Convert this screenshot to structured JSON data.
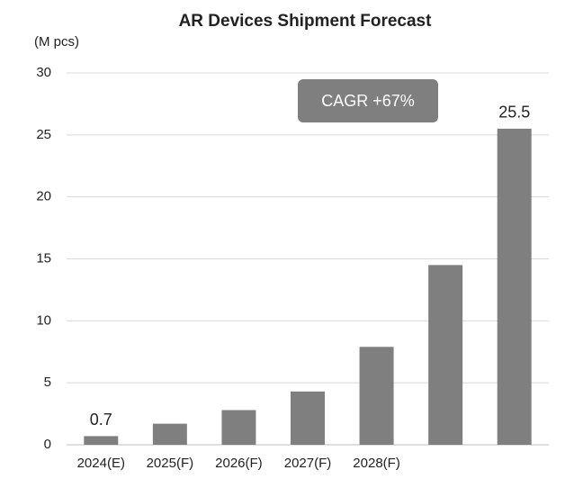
{
  "chart_data": {
    "type": "bar",
    "title": "AR Devices Shipment Forecast",
    "y_label": "(M pcs)",
    "categories": [
      "2024(E)",
      "2025(F)",
      "2026(F)",
      "2027(F)",
      "2028(F)",
      null,
      null
    ],
    "values": [
      0.7,
      1.7,
      2.8,
      4.3,
      7.9,
      14.5,
      25.5
    ],
    "value_labels": [
      "0.7",
      null,
      null,
      null,
      null,
      null,
      "25.5"
    ],
    "color": "#7f7f7f",
    "annotation": "CAGR +67%",
    "ylim": [
      0,
      30
    ],
    "yticks": [
      0,
      5,
      10,
      15,
      20,
      25,
      30
    ],
    "grid": true
  }
}
